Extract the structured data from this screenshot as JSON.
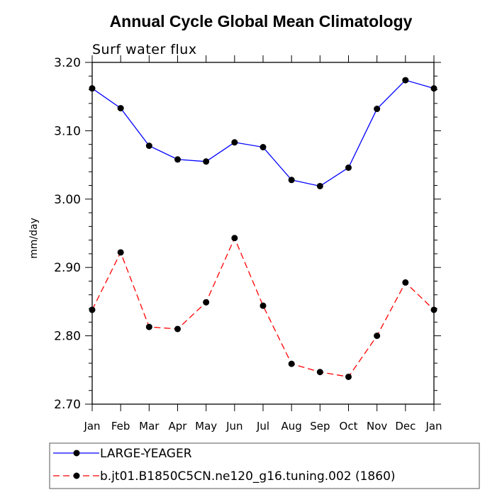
{
  "chart_data": {
    "type": "line",
    "title": "Annual Cycle Global Mean Climatology",
    "subtitle": "Surf water flux",
    "xlabel": "",
    "ylabel": "mm/day",
    "ylim": [
      2.7,
      3.2
    ],
    "yticks": [
      "2.70",
      "2.80",
      "2.90",
      "3.00",
      "3.10",
      "3.20"
    ],
    "yticks_values": [
      2.7,
      2.8,
      2.9,
      3.0,
      3.1,
      3.2
    ],
    "categories": [
      "Jan",
      "Feb",
      "Mar",
      "Apr",
      "May",
      "Jun",
      "Jul",
      "Aug",
      "Sep",
      "Oct",
      "Nov",
      "Dec",
      "Jan"
    ],
    "series": [
      {
        "name": "LARGE-YEAGER",
        "color": "#0000ff",
        "line_style": "solid",
        "values": [
          3.162,
          3.133,
          3.078,
          3.058,
          3.055,
          3.083,
          3.076,
          3.028,
          3.019,
          3.046,
          3.132,
          3.174,
          3.162
        ]
      },
      {
        "name": "b.jt01.B1850C5CN.ne120_g16.tuning.002 (1860)",
        "color": "#ff0000",
        "line_style": "dashed",
        "values": [
          2.838,
          2.922,
          2.813,
          2.81,
          2.849,
          2.943,
          2.844,
          2.759,
          2.747,
          2.74,
          2.8,
          2.878,
          2.838
        ]
      }
    ],
    "marker_color": "#000000",
    "grid": false,
    "legend_position": "bottom"
  }
}
